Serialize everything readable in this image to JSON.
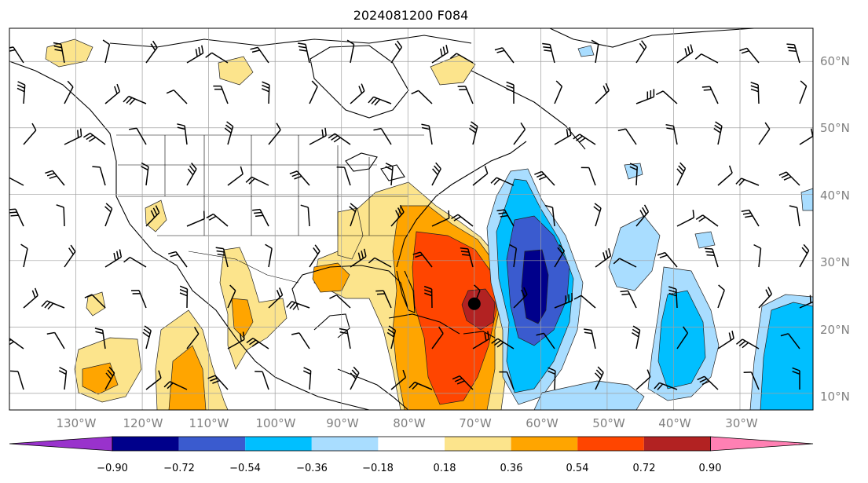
{
  "title": "2024081200 F084",
  "map": {
    "lon_range": [
      -140,
      -19
    ],
    "lat_range": [
      7.5,
      65
    ],
    "lat_labels": [
      "60°N",
      "50°N",
      "40°N",
      "30°N",
      "20°N",
      "10°N"
    ],
    "lon_labels": [
      "130°W",
      "120°W",
      "110°W",
      "100°W",
      "90°W",
      "80°W",
      "70°W",
      "60°W",
      "50°W",
      "40°W",
      "30°W"
    ],
    "gridlines": true,
    "storm_marker": {
      "lon": -70,
      "lat": 23.5
    }
  },
  "colorbar": {
    "ticks": [
      "−0.90",
      "−0.72",
      "−0.54",
      "−0.36",
      "−0.18",
      "0.18",
      "0.36",
      "0.54",
      "0.72",
      "0.90"
    ],
    "colors": [
      "#9932cc",
      "#00008b",
      "#3a5bcf",
      "#00bfff",
      "#a9ddff",
      "#ffffff",
      "#fce48c",
      "#ffa500",
      "#ff4500",
      "#b22222",
      "#ff80b3"
    ],
    "extend": "both"
  }
}
